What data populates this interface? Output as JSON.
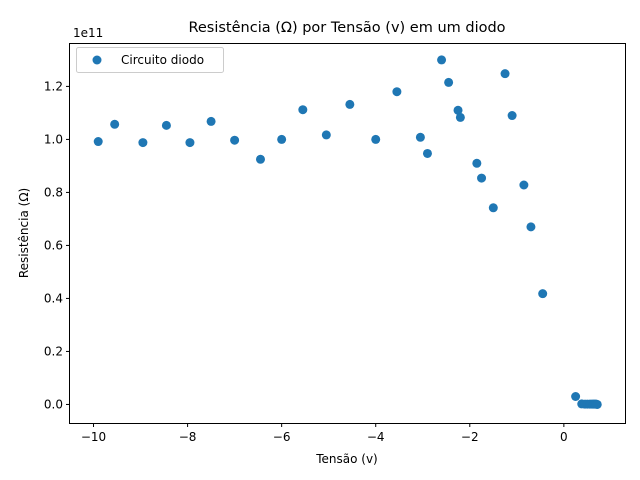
{
  "chart_data": {
    "type": "scatter",
    "title": "Resistência (Ω) por Tensão (v) em um diodo",
    "xlabel": "Tensão (v)",
    "ylabel": "Resistência (Ω)",
    "y_offset_label": "1e11",
    "xlim": [
      -10.5,
      1.3
    ],
    "ylim": [
      -0.07,
      1.36
    ],
    "grid": false,
    "legend_position": "top-left",
    "x_ticks": [
      -10,
      -8,
      -6,
      -4,
      -2,
      0
    ],
    "x_tick_labels": [
      "−10",
      "−8",
      "−6",
      "−4",
      "−2",
      "0"
    ],
    "y_ticks": [
      0.0,
      0.2,
      0.4,
      0.6,
      0.8,
      1.0,
      1.2
    ],
    "y_tick_labels": [
      "0.0",
      "0.2",
      "0.4",
      "0.6",
      "0.8",
      "1.0",
      "1.2"
    ],
    "marker_color": "#1f77b4",
    "series": [
      {
        "name": "Circuito diodo",
        "points": [
          [
            -9.9,
            0.992
          ],
          [
            -9.55,
            1.057
          ],
          [
            -8.95,
            0.988
          ],
          [
            -8.45,
            1.053
          ],
          [
            -7.95,
            0.988
          ],
          [
            -7.5,
            1.068
          ],
          [
            -7.0,
            0.997
          ],
          [
            -6.45,
            0.925
          ],
          [
            -6.0,
            1.0
          ],
          [
            -5.55,
            1.112
          ],
          [
            -5.05,
            1.017
          ],
          [
            -4.55,
            1.132
          ],
          [
            -4.0,
            1.0
          ],
          [
            -3.55,
            1.18
          ],
          [
            -3.05,
            1.008
          ],
          [
            -2.9,
            0.947
          ],
          [
            -2.6,
            1.3
          ],
          [
            -2.45,
            1.215
          ],
          [
            -2.25,
            1.11
          ],
          [
            -2.2,
            1.083
          ],
          [
            -1.85,
            0.91
          ],
          [
            -1.75,
            0.854
          ],
          [
            -1.5,
            0.742
          ],
          [
            -1.25,
            1.248
          ],
          [
            -1.1,
            1.09
          ],
          [
            -0.85,
            0.828
          ],
          [
            -0.7,
            0.67
          ],
          [
            -0.45,
            0.418
          ],
          [
            0.25,
            0.03
          ],
          [
            0.38,
            0.002
          ],
          [
            0.45,
            0.001
          ],
          [
            0.5,
            0.001
          ],
          [
            0.55,
            0.001
          ],
          [
            0.58,
            0.001
          ],
          [
            0.61,
            0.001
          ],
          [
            0.63,
            0.001
          ],
          [
            0.65,
            0.001
          ],
          [
            0.67,
            0.001
          ],
          [
            0.69,
            0.001
          ],
          [
            0.71,
            0.0
          ]
        ]
      }
    ]
  }
}
